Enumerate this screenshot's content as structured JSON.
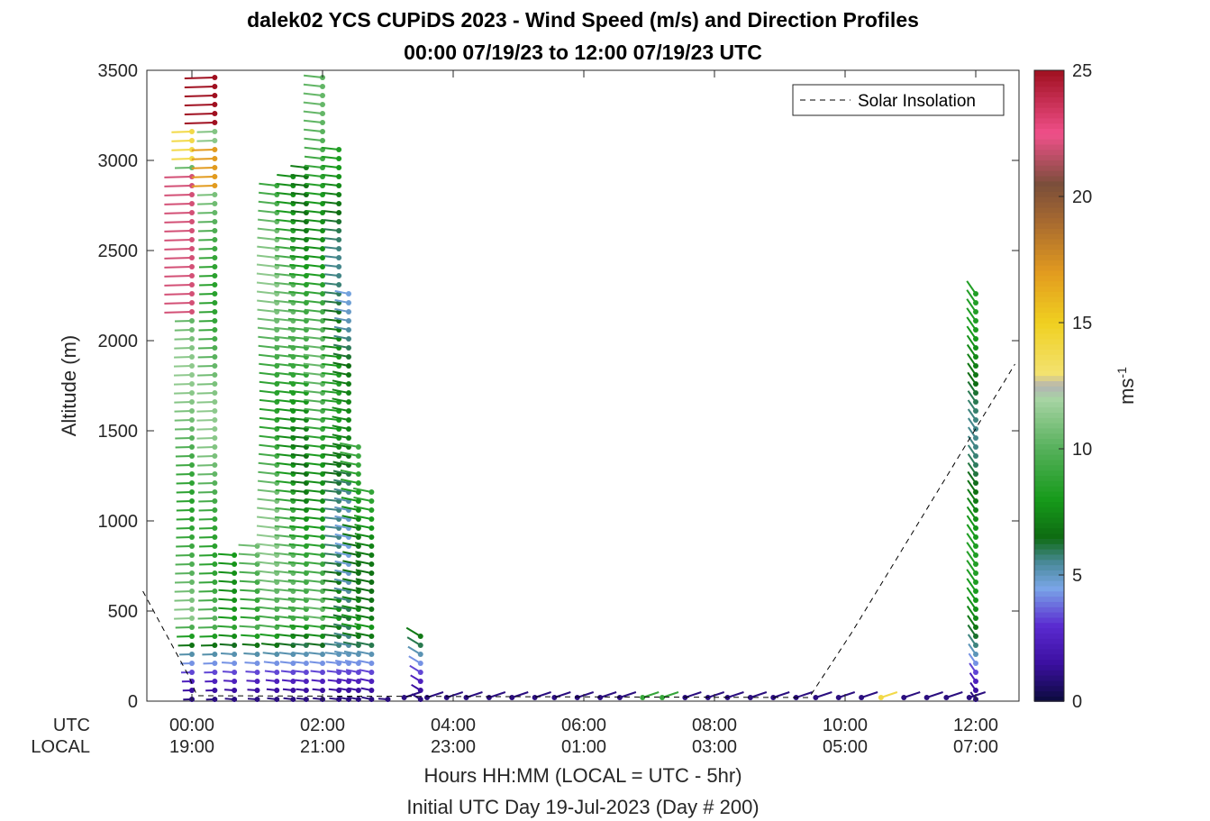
{
  "chart_data": {
    "type": "scatter",
    "subtype": "wind-barb-profiles",
    "title": "dalek02 YCS CUPiDS 2023 - Wind Speed (m/s) and Direction Profiles",
    "subtitle": "00:00 07/19/23 to 12:00 07/19/23  UTC",
    "xlabel": "Hours HH:MM  (LOCAL = UTC - 5hr)",
    "xlabel2": "Initial UTC Day 19-Jul-2023 (Day # 200)",
    "ylabel": "Altitude (m)",
    "xlim_hours": [
      -0.75,
      12.6
    ],
    "ylim": [
      0,
      3500
    ],
    "yticks": [
      "0",
      "500",
      "1000",
      "1500",
      "2000",
      "2500",
      "3000",
      "3500"
    ],
    "x_row_labels": [
      "UTC",
      "LOCAL"
    ],
    "xticks_utc": [
      "00:00",
      "02:00",
      "04:00",
      "06:00",
      "08:00",
      "10:00",
      "12:00"
    ],
    "xticks_local": [
      "19:00",
      "21:00",
      "23:00",
      "01:00",
      "03:00",
      "05:00",
      "07:00"
    ],
    "xtick_hours": [
      0,
      2,
      4,
      6,
      8,
      10,
      12
    ],
    "legend": {
      "entries": [
        "Solar Insolation"
      ],
      "placement": "top-right"
    },
    "colorbar": {
      "label": "ms-1",
      "min": 0,
      "max": 25,
      "ticks": [
        "0",
        "5",
        "10",
        "15",
        "20",
        "25"
      ]
    },
    "solar_insolation": {
      "name": "Solar Insolation",
      "style": "dashed",
      "points": [
        [
          -0.75,
          610
        ],
        [
          -0.05,
          140
        ],
        [
          0.08,
          30
        ],
        [
          9.45,
          20
        ],
        [
          10.1,
          380
        ],
        [
          12.6,
          1870
        ]
      ]
    },
    "profiles": [
      {
        "t": 0.0,
        "top": 3200,
        "speed": 10,
        "dir": 240,
        "high": [
          [
            2150,
            2950,
            22
          ],
          [
            3000,
            3200,
            14
          ]
        ]
      },
      {
        "t": 0.35,
        "top": 3480,
        "speed": 10,
        "dir": 240,
        "high": [
          [
            3180,
            3480,
            25
          ],
          [
            2850,
            3100,
            17
          ]
        ]
      },
      {
        "t": 0.65,
        "top": 830,
        "speed": 9,
        "dir": 250
      },
      {
        "t": 1.0,
        "top": 870,
        "speed": 10,
        "dir": 250
      },
      {
        "t": 1.3,
        "top": 2900,
        "speed": 10,
        "dir": 255
      },
      {
        "t": 1.55,
        "top": 2950,
        "speed": 9,
        "dir": 255
      },
      {
        "t": 1.75,
        "top": 2980,
        "speed": 8,
        "dir": 255
      },
      {
        "t": 2.0,
        "top": 3480,
        "speed": 9,
        "dir": 255
      },
      {
        "t": 2.25,
        "top": 3100,
        "speed": 7,
        "dir": 255
      },
      {
        "t": 2.4,
        "top": 2270,
        "speed": 6,
        "dir": 265
      },
      {
        "t": 2.55,
        "top": 1450,
        "speed": 8,
        "dir": 265
      },
      {
        "t": 2.75,
        "top": 1160,
        "speed": 8,
        "dir": 265
      },
      {
        "t": 3.0,
        "top": 50,
        "speed": 2,
        "dir": 250
      },
      {
        "t": 3.5,
        "top": 370,
        "speed": 8,
        "dir": 300
      },
      {
        "t": 12.0,
        "top": 2270,
        "speed": 7,
        "dir": 330
      }
    ],
    "surface_winds": [
      {
        "t": 3.25,
        "speed": 1
      },
      {
        "t": 3.6,
        "speed": 1
      },
      {
        "t": 3.9,
        "speed": 1
      },
      {
        "t": 4.2,
        "speed": 1
      },
      {
        "t": 4.55,
        "speed": 1
      },
      {
        "t": 4.9,
        "speed": 1
      },
      {
        "t": 5.25,
        "speed": 1
      },
      {
        "t": 5.55,
        "speed": 1
      },
      {
        "t": 5.9,
        "speed": 1
      },
      {
        "t": 6.25,
        "speed": 1
      },
      {
        "t": 6.55,
        "speed": 1
      },
      {
        "t": 6.9,
        "speed": 9
      },
      {
        "t": 7.2,
        "speed": 9
      },
      {
        "t": 7.55,
        "speed": 1
      },
      {
        "t": 7.9,
        "speed": 1
      },
      {
        "t": 8.2,
        "speed": 1
      },
      {
        "t": 8.55,
        "speed": 1
      },
      {
        "t": 8.9,
        "speed": 1
      },
      {
        "t": 9.25,
        "speed": 1
      },
      {
        "t": 9.55,
        "speed": 1
      },
      {
        "t": 9.9,
        "speed": 1
      },
      {
        "t": 10.25,
        "speed": 1
      },
      {
        "t": 10.55,
        "speed": 14
      },
      {
        "t": 10.9,
        "speed": 1
      },
      {
        "t": 11.25,
        "speed": 1
      },
      {
        "t": 11.55,
        "speed": 1
      },
      {
        "t": 11.9,
        "speed": 1
      }
    ]
  }
}
